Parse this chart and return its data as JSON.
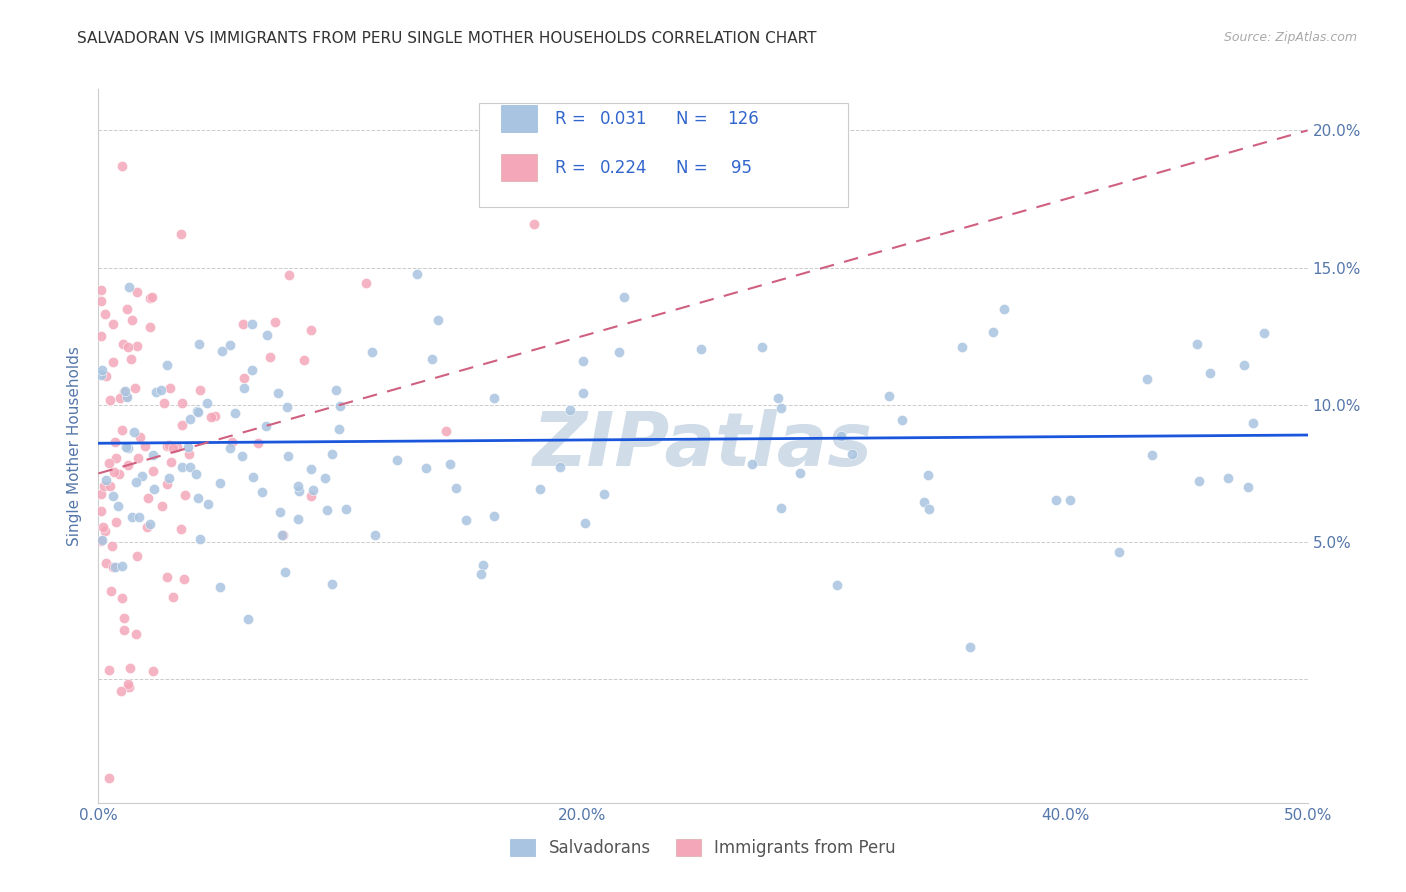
{
  "title": "SALVADORAN VS IMMIGRANTS FROM PERU SINGLE MOTHER HOUSEHOLDS CORRELATION CHART",
  "source": "Source: ZipAtlas.com",
  "ylabel_label": "Single Mother Households",
  "xlim": [
    0.0,
    0.5
  ],
  "ylim": [
    -0.045,
    0.215
  ],
  "xticks": [
    0.0,
    0.1,
    0.2,
    0.3,
    0.4,
    0.5
  ],
  "xtick_labels": [
    "0.0%",
    "",
    "20.0%",
    "",
    "40.0%",
    "50.0%"
  ],
  "yticks": [
    0.0,
    0.05,
    0.1,
    0.15,
    0.2
  ],
  "ytick_labels_right": [
    "",
    "5.0%",
    "10.0%",
    "15.0%",
    "20.0%"
  ],
  "legend_blue_label": "Salvadorans",
  "legend_pink_label": "Immigrants from Peru",
  "R_blue": 0.031,
  "N_blue": 126,
  "R_pink": 0.224,
  "N_pink": 95,
  "blue_color": "#a8c4e0",
  "pink_color": "#f4a7b9",
  "trendline_blue_color": "#1a56db",
  "trendline_pink_color": "#d06080",
  "watermark_text": "ZIPatlas",
  "watermark_color": "#d0dce8",
  "background_color": "#ffffff",
  "grid_color": "#cccccc",
  "title_color": "#333333",
  "axis_label_color": "#5577aa",
  "tick_color": "#5577aa",
  "legend_text_color": "#3366cc"
}
